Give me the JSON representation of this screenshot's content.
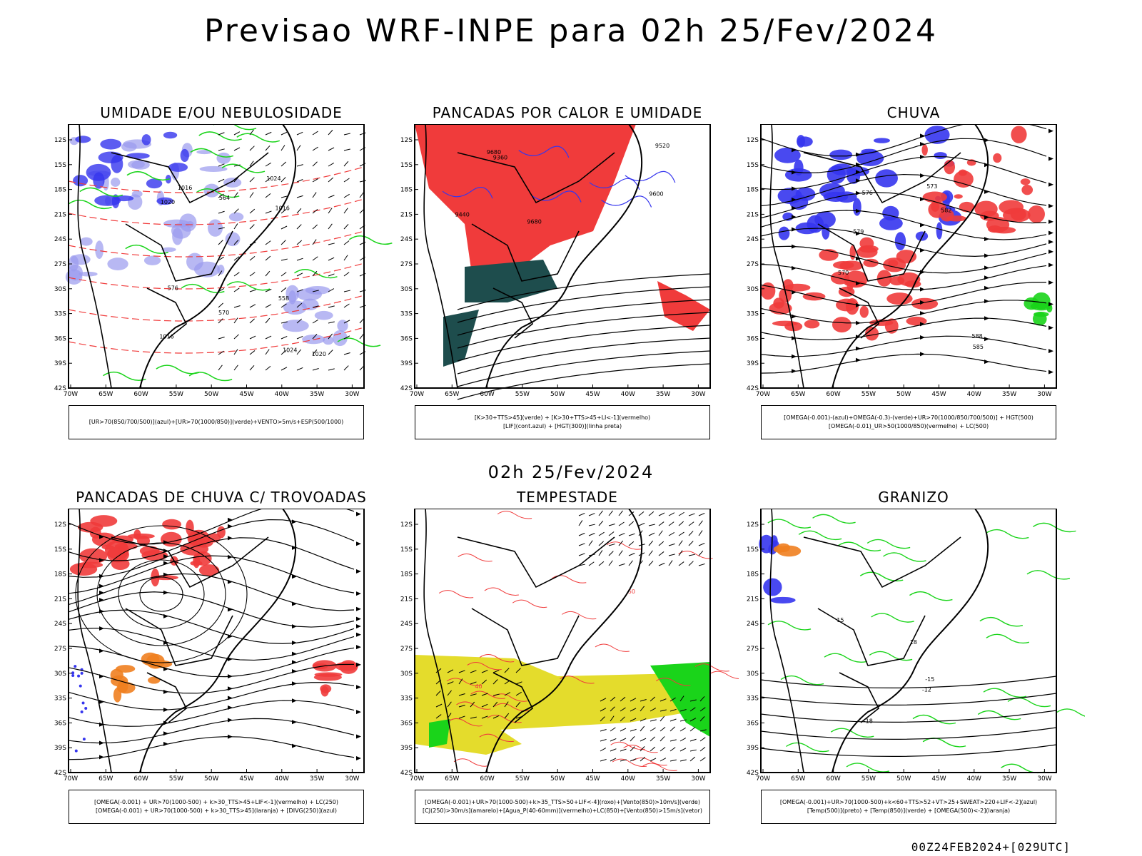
{
  "header": {
    "title": "Previsao WRF-INPE  para 02h 25/Fev/2024",
    "mid_title": "02h 25/Fev/2024",
    "footer": "00Z24FEB2024+[029UTC]"
  },
  "axes": {
    "lat_labels": [
      "12S",
      "15S",
      "18S",
      "21S",
      "24S",
      "27S",
      "30S",
      "33S",
      "36S",
      "39S",
      "42S"
    ],
    "lon_labels": [
      "70W",
      "65W",
      "60W",
      "55W",
      "50W",
      "45W",
      "40W",
      "35W",
      "30W"
    ]
  },
  "colors": {
    "blue": "#3535ee",
    "light_blue": "#9a9aee",
    "green": "#1ad41a",
    "red": "#f03b3b",
    "dark_teal": "#1e4d4d",
    "yellow": "#e4dc2c",
    "orange": "#f08020",
    "black": "#000000"
  },
  "chart_data": [
    {
      "type": "other",
      "title": "UMIDADE E/OU NEBULOSIDADE",
      "legend": [
        "[UR>70(850/700/500)](azul)+[UR>70(1000/850)](verde)+VENTO>5m/s+ESP(500/1000)"
      ],
      "contour_labels": [
        "1016",
        "1016",
        "1016",
        "1020",
        "1020",
        "1024",
        "1024",
        "576",
        "570",
        "564",
        "558"
      ]
    },
    {
      "type": "other",
      "title": "PANCADAS POR CALOR E UMIDADE",
      "legend": [
        "[K>30+TTS>45](verde) + [K>30+TTS>45+LI<-1](vermelho)",
        "[LIF](cont.azul) + [HGT(300)](linha preta)"
      ],
      "contour_labels": [
        "9680",
        "9680",
        "9600",
        "9520",
        "9440",
        "9360"
      ]
    },
    {
      "type": "other",
      "title": "CHUVA",
      "legend": [
        "[OMEGA(-0.001)-(azul)+OMEGA(-0.3)-(verde)+UR>70(1000/850/700/500)] + HGT(500)",
        "[OMEGA(-0.01)_UR>50(1000/850)(vermelho) + LC(500)"
      ],
      "contour_labels": [
        "588",
        "585",
        "582",
        "579",
        "576",
        "573",
        "570"
      ]
    },
    {
      "type": "other",
      "title": "PANCADAS DE CHUVA C/ TROVOADAS",
      "legend": [
        "[OMEGA(-0.001) + UR>70(1000-500) + k>30_TTS>45+LIF<-1](vermelho) + LC(250)",
        "[OMEGA(-0.001) + UR>70(1000-500) + k>30_TTS>45](laranja) + [DIVG(250)](azul)"
      ],
      "contour_labels": []
    },
    {
      "type": "other",
      "title": "TEMPESTADE",
      "legend": [
        "[OMEGA(-0.001)+UR>70(1000-500)+k>35_TTS>50+LIF<-4](roxo)+[Vento(850)>10m/s](verde)",
        "[CJ(250)>30m/s](amarelo)+[Agua_P(40-60mm)](vermelho)+LC(850)+[Vento(850)>15m/s](vetor)"
      ],
      "contour_labels": [
        "40",
        "50"
      ]
    },
    {
      "type": "other",
      "title": "GRANIZO",
      "legend": [
        "[OMEGA(-0.001)+UR>70(1000-500)+k<60+TTS>52+VT>25+SWEAT>220+LIF<-2](azul)",
        "[Temp(500)](preto) + [Temp(850)](verde) + [OMEGA(500)<-2](laranja)"
      ],
      "contour_labels": [
        "-12",
        "-15",
        "-18",
        "15",
        "18"
      ]
    }
  ]
}
